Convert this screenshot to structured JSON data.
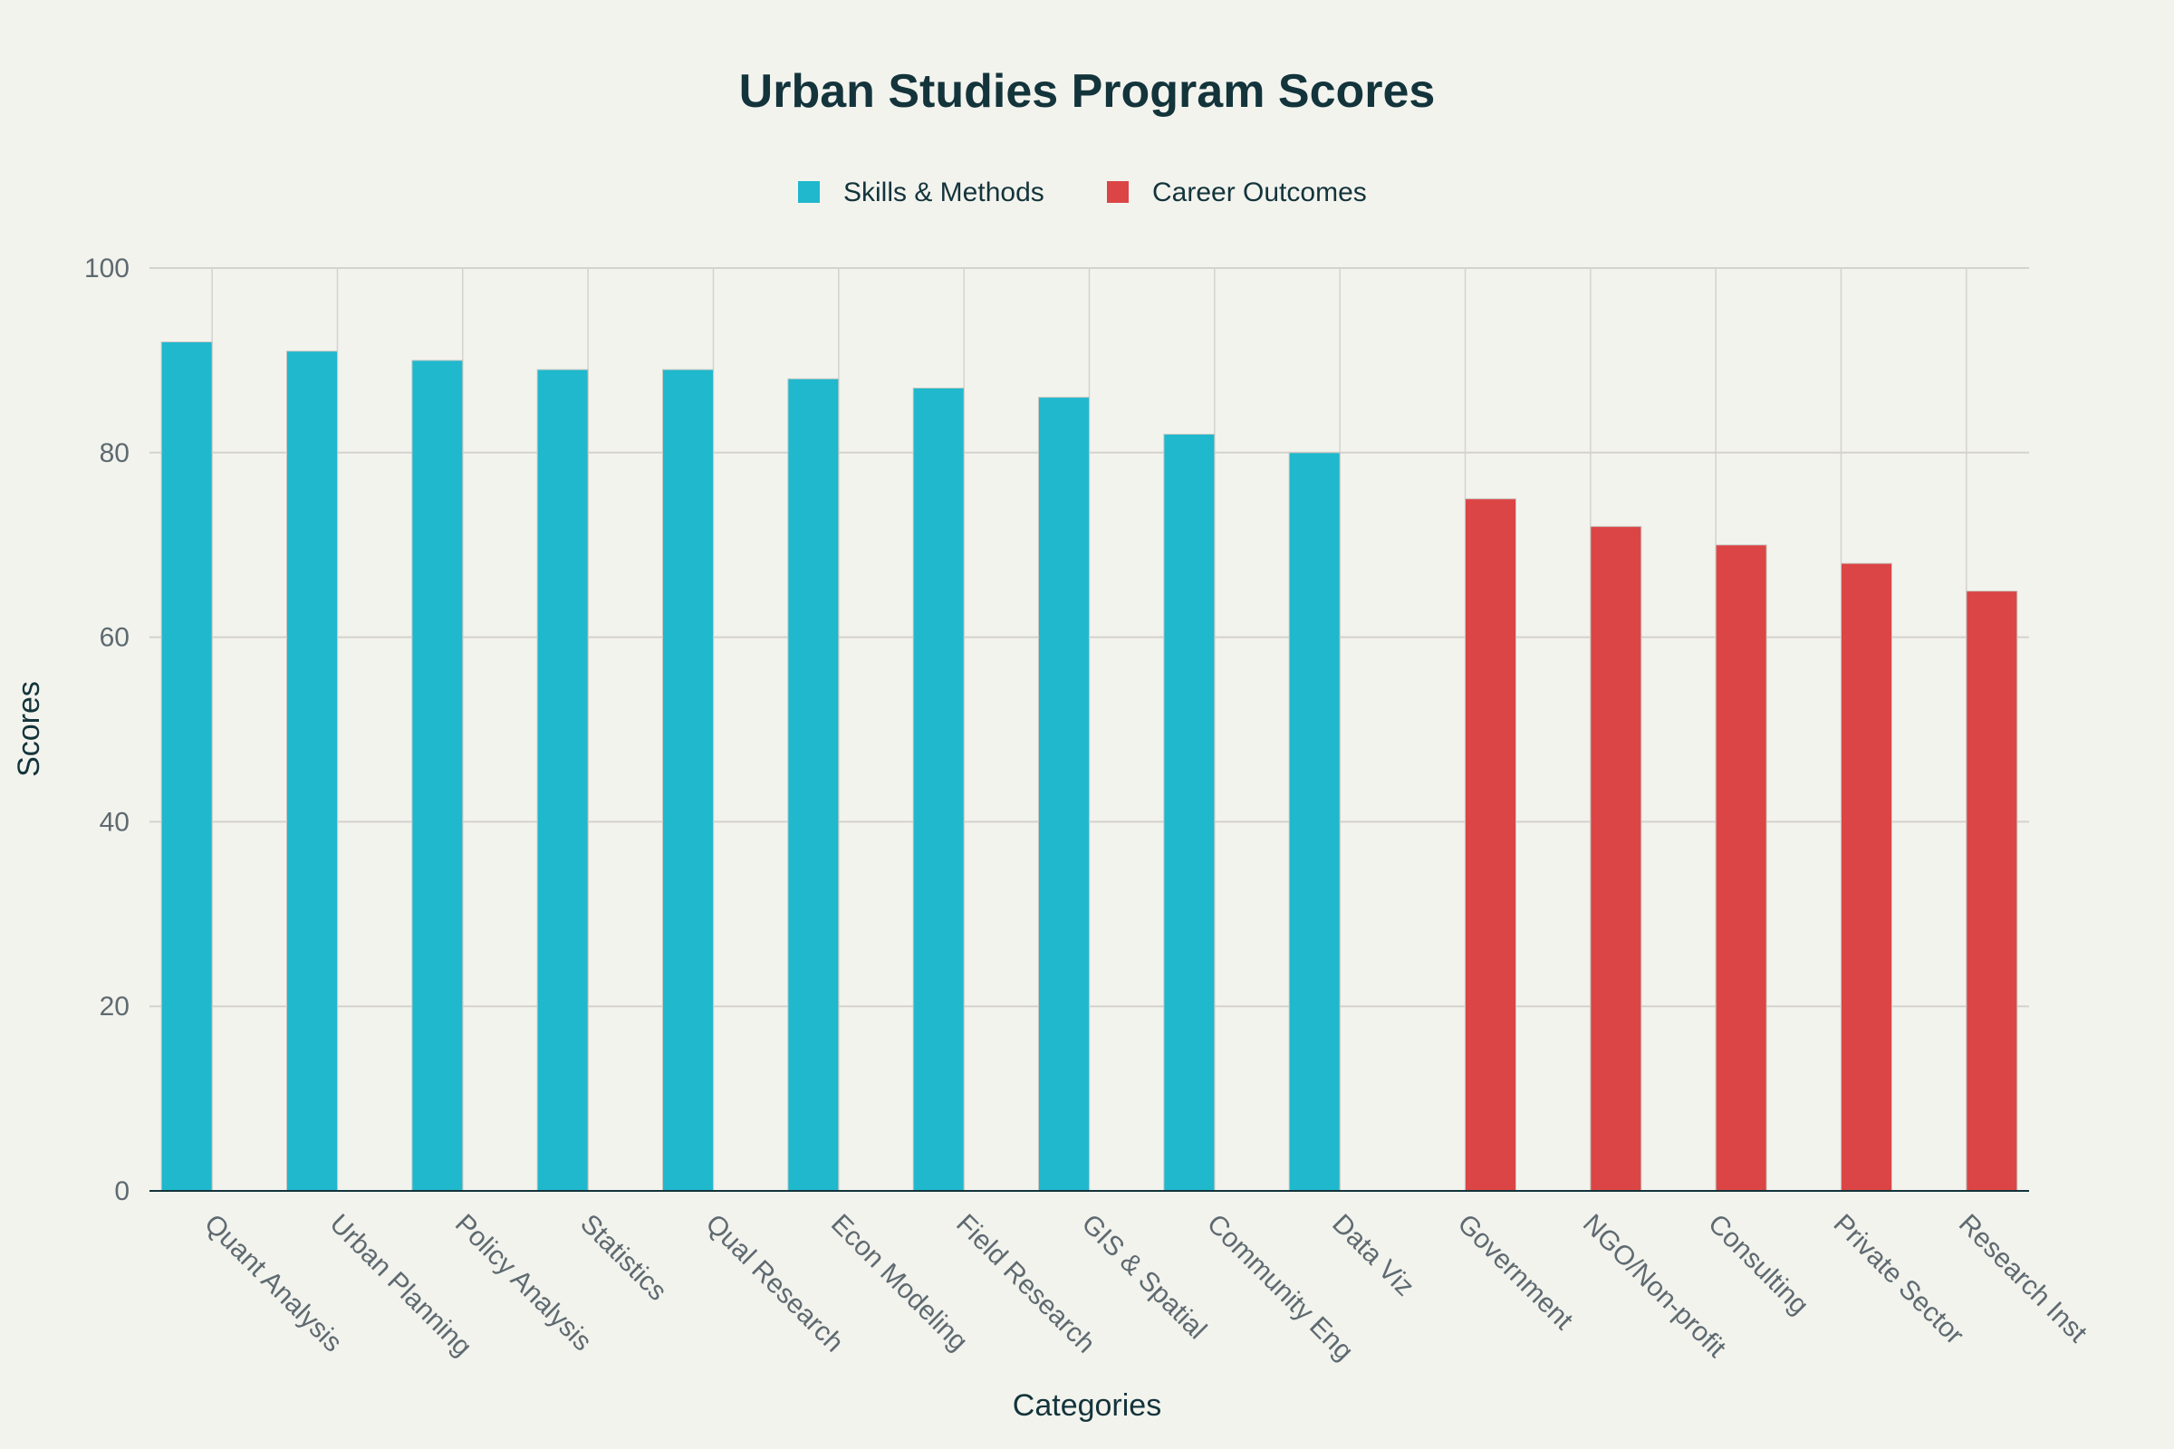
{
  "chart_data": {
    "type": "bar",
    "title": "Urban Studies Program Scores",
    "xlabel": "Categories",
    "ylabel": "Scores",
    "ylim": [
      0,
      100
    ],
    "yticks": [
      0,
      20,
      40,
      60,
      80,
      100
    ],
    "grid": true,
    "legend_placement": "top-center",
    "categories": [
      "Quant Analysis",
      "Urban Planning",
      "Policy Analysis",
      "Statistics",
      "Qual Research",
      "Econ Modeling",
      "Field Research",
      "GIS & Spatial",
      "Community Eng",
      "Data Viz",
      "Government",
      "NGO/Non-profit",
      "Consulting",
      "Private Sector",
      "Research Inst"
    ],
    "series": [
      {
        "name": "Skills & Methods",
        "color": "#1fb8cd",
        "values": [
          92,
          91,
          90,
          89,
          89,
          88,
          87,
          86,
          82,
          80,
          0,
          0,
          0,
          0,
          0
        ]
      },
      {
        "name": "Career Outcomes",
        "color": "#db4545",
        "values": [
          0,
          0,
          0,
          0,
          0,
          0,
          0,
          0,
          0,
          0,
          75,
          72,
          70,
          68,
          65
        ]
      }
    ]
  }
}
